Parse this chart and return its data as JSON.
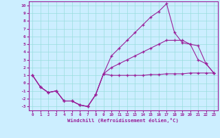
{
  "xlabel": "Windchill (Refroidissement éolien,°C)",
  "x": [
    0,
    1,
    2,
    3,
    4,
    5,
    6,
    7,
    8,
    9,
    10,
    11,
    12,
    13,
    14,
    15,
    16,
    17,
    18,
    19,
    20,
    21,
    22,
    23
  ],
  "line1": [
    1.0,
    -0.5,
    -1.2,
    -1.0,
    -2.3,
    -2.3,
    -2.8,
    -3.0,
    -1.5,
    1.2,
    1.0,
    1.0,
    1.0,
    1.0,
    1.0,
    1.1,
    1.1,
    1.2,
    1.2,
    1.2,
    1.3,
    1.3,
    1.3,
    1.3
  ],
  "line2": [
    1.0,
    -0.5,
    -1.2,
    -1.0,
    -2.3,
    -2.3,
    -2.8,
    -3.0,
    -1.5,
    1.2,
    3.5,
    4.5,
    5.5,
    6.5,
    7.5,
    8.5,
    9.2,
    10.2,
    6.5,
    5.2,
    5.0,
    4.8,
    2.5,
    1.3
  ],
  "line3": [
    1.0,
    -0.5,
    -1.2,
    -1.0,
    -2.3,
    -2.3,
    -2.8,
    -3.0,
    -1.5,
    1.2,
    2.0,
    2.5,
    3.0,
    3.5,
    4.0,
    4.5,
    5.0,
    5.5,
    5.5,
    5.5,
    5.0,
    3.0,
    2.5,
    1.3
  ],
  "line_color": "#991f99",
  "bg_color": "#cceeff",
  "grid_color": "#99dddd",
  "xlim": [
    -0.5,
    23.5
  ],
  "ylim": [
    -3.5,
    10.5
  ],
  "yticks": [
    10,
    9,
    8,
    7,
    6,
    5,
    4,
    3,
    2,
    1,
    0,
    -1,
    -2,
    -3
  ],
  "xticks": [
    0,
    1,
    2,
    3,
    4,
    5,
    6,
    7,
    8,
    9,
    10,
    11,
    12,
    13,
    14,
    15,
    16,
    17,
    18,
    19,
    20,
    21,
    22,
    23
  ]
}
